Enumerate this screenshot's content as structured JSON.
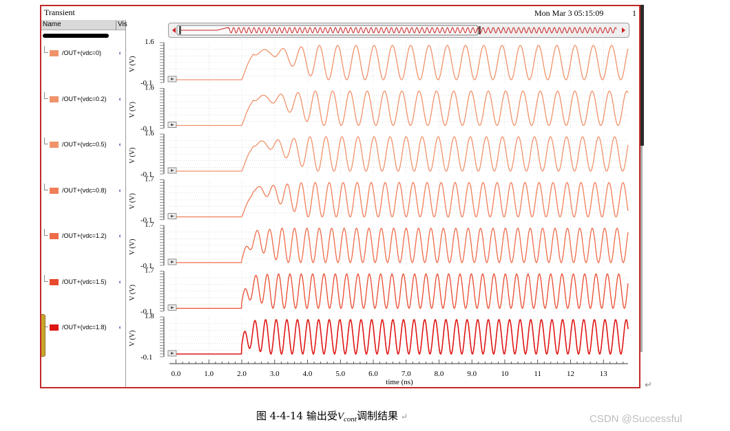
{
  "window": {
    "title": "Transient",
    "datetime": "Mon Mar 3 05:15:09",
    "page_number": "1"
  },
  "sidebar": {
    "col_name": "Name",
    "col_visible": "Vis",
    "signals": [
      {
        "label": "/OUT+(vdc=0)",
        "color": "#f0926a"
      },
      {
        "label": "/OUT+(vdc=0.2)",
        "color": "#f0926a"
      },
      {
        "label": "/OUT+(vdc=0.5)",
        "color": "#f0926a"
      },
      {
        "label": "/OUT+(vdc=0.8)",
        "color": "#f07e59"
      },
      {
        "label": "/OUT+(vdc=1.2)",
        "color": "#ef6b48"
      },
      {
        "label": "/OUT+(vdc=1.5)",
        "color": "#e94a2e"
      },
      {
        "label": "/OUT+(vdc=1.8)",
        "color": "#e01515"
      }
    ]
  },
  "chart_data": {
    "type": "line",
    "xlabel": "time (ns)",
    "xlim": [
      -0.2,
      13.75
    ],
    "xticks": [
      "0.0",
      "1.0",
      "2.0",
      "3.0",
      "4.0",
      "5.0",
      "6.0",
      "7.0",
      "8.0",
      "9.0",
      "10",
      "11",
      "12",
      "13"
    ],
    "ylabel": "V (V)",
    "series": [
      {
        "name": "/OUT+(vdc=0)",
        "ymax_label": "1.6",
        "ymin_label": "-0.1",
        "color": "#f0926a",
        "freq_ghz": 1.8,
        "settle_ns": 4.3
      },
      {
        "name": "/OUT+(vdc=0.2)",
        "ymax_label": "1.6",
        "ymin_label": "-0.1",
        "color": "#f0926a",
        "freq_ghz": 1.9,
        "settle_ns": 4.2
      },
      {
        "name": "/OUT+(vdc=0.5)",
        "ymax_label": "1.6",
        "ymin_label": "-0.1",
        "color": "#f0926a",
        "freq_ghz": 2.05,
        "settle_ns": 4.1
      },
      {
        "name": "/OUT+(vdc=0.8)",
        "ymax_label": "1.7",
        "ymin_label": "-0.1",
        "color": "#f07e59",
        "freq_ghz": 2.35,
        "settle_ns": 3.9
      },
      {
        "name": "/OUT+(vdc=1.2)",
        "ymax_label": "1.7",
        "ymin_label": "-0.1",
        "color": "#ef6b48",
        "freq_ghz": 2.65,
        "settle_ns": 3.2
      },
      {
        "name": "/OUT+(vdc=1.5)",
        "ymax_label": "1.7",
        "ymin_label": "-0.1",
        "color": "#e94a2e",
        "freq_ghz": 2.9,
        "settle_ns": 2.9
      },
      {
        "name": "/OUT+(vdc=1.8)",
        "ymax_label": "1.8",
        "ymin_label": "-0.1",
        "color": "#e01515",
        "freq_ghz": 3.1,
        "settle_ns": 2.7
      }
    ]
  },
  "caption": {
    "prefix": "图 4-4-14  输出受",
    "var": "V",
    "sub": "cont",
    "suffix": "调制结果"
  },
  "watermark": "CSDN @Successful"
}
